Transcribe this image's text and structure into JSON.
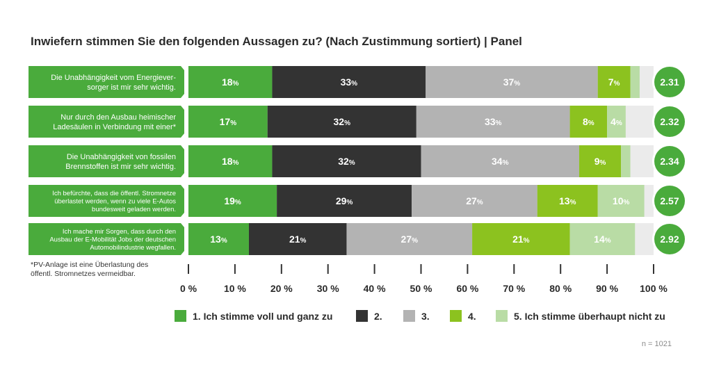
{
  "title": "Inwiefern stimmen Sie den folgenden Aussagen zu? (Nach Zustimmung sortiert) | Panel",
  "footnote": [
    "*PV-Anlage ist eine Überlastung des",
    "öffentl. Stromnetzes vermeidbar."
  ],
  "sample_size": "n = 1021",
  "colors": {
    "c1": "#4aab3c",
    "c2": "#333333",
    "c3": "#b3b3b3",
    "c4": "#8cc21f",
    "c5": "#b9dca5",
    "track": "#ebebeb"
  },
  "chart_data": {
    "type": "bar",
    "orientation": "horizontal",
    "stacked": true,
    "unit": "%",
    "xlim": [
      0,
      100
    ],
    "x_ticks": [
      "0 %",
      "10 %",
      "20 %",
      "30 %",
      "40 %",
      "50 %",
      "60 %",
      "70 %",
      "80 %",
      "90 %",
      "100 %"
    ],
    "categories": [
      [
        "Die Unabhängigkeit vom Energiever-",
        "sorger ist mir sehr wichtig."
      ],
      [
        "Nur durch den Ausbau heimischer",
        "Ladesäulen in Verbindung mit einer*"
      ],
      [
        "Die Unabhängigkeit von fossilen",
        "Brennstoffen ist mir sehr wichtig."
      ],
      [
        "Ich befürchte, dass die öffentl. Stromnetze",
        "überlastet werden, wenn zu viele E-Autos",
        "bundesweit geladen werden."
      ],
      [
        "Ich mache mir Sorgen, dass durch den",
        "Ausbau der E-Mobilität Jobs der deutschen",
        "Automobilindustrie wegfallen."
      ]
    ],
    "series": [
      {
        "name": "1. Ich stimme voll und ganz zu",
        "values": [
          18,
          17,
          18,
          19,
          13
        ],
        "color_key": "c1"
      },
      {
        "name": "2.",
        "values": [
          33,
          32,
          32,
          29,
          21
        ],
        "color_key": "c2"
      },
      {
        "name": "3.",
        "values": [
          37,
          33,
          34,
          27,
          27
        ],
        "color_key": "c3"
      },
      {
        "name": "4.",
        "values": [
          7,
          8,
          9,
          13,
          21
        ],
        "color_key": "c4"
      },
      {
        "name": "5. Ich stimme überhaupt nicht zu",
        "values": [
          2,
          4,
          2,
          10,
          14
        ],
        "color_key": "c5"
      }
    ],
    "labels": [
      [
        "18",
        "33",
        "37",
        "7",
        ""
      ],
      [
        "17",
        "32",
        "33",
        "8",
        "4"
      ],
      [
        "18",
        "32",
        "34",
        "9",
        ""
      ],
      [
        "19",
        "29",
        "27",
        "13",
        "10"
      ],
      [
        "13",
        "21",
        "27",
        "21",
        "14"
      ]
    ],
    "mean_values": [
      "2.31",
      "2.32",
      "2.34",
      "2.57",
      "2.92"
    ],
    "legend_position": "bottom"
  }
}
